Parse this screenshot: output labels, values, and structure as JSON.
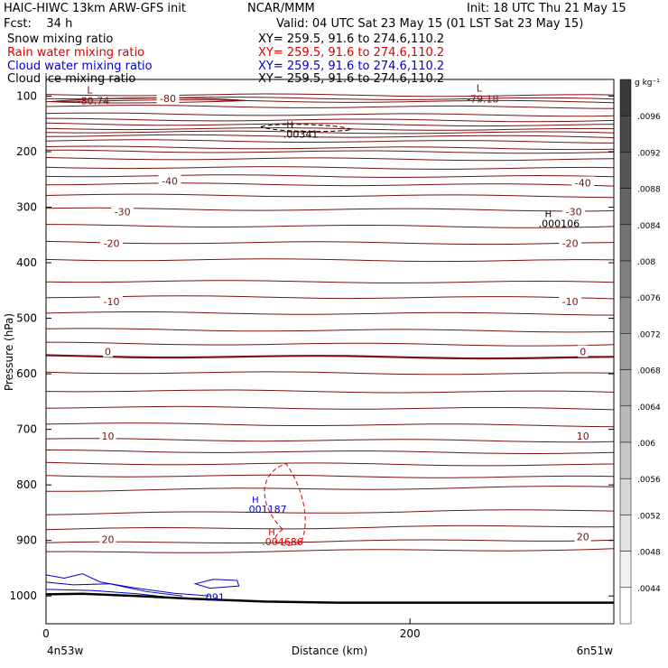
{
  "header": {
    "title_left": "HAIC-HIWC 13km ARW-GFS init",
    "center_org": "NCAR/MMM",
    "init": "Init: 18 UTC Thu 21 May 15",
    "fcst": "Fcst:    34 h",
    "valid": "Valid: 04 UTC Sat 23 May 15 (01 LST Sat 23 May 15)",
    "fields": [
      {
        "name": "Snow mixing ratio",
        "xy": "XY= 259.5, 91.6 to 274.6,110.2",
        "color": "#000000"
      },
      {
        "name": "Rain water mixing ratio",
        "xy": "XY= 259.5, 91.6 to 274.6,110.2",
        "color": "#e00000"
      },
      {
        "name": "Cloud water mixing ratio",
        "xy": "XY= 259.5, 91.6 to 274.6,110.2",
        "color": "#0000d0"
      },
      {
        "name": "Cloud ice mixing ratio",
        "xy": "XY= 259.5, 91.6 to 274.6,110.2",
        "color": "#000000"
      }
    ]
  },
  "chart_data": {
    "type": "cross-section",
    "ylabel": "Pressure (hPa)",
    "xlabel": "Distance (km)",
    "x_ticks": [
      0,
      200
    ],
    "y_ticks": [
      100,
      200,
      300,
      400,
      500,
      600,
      700,
      800,
      900,
      1000
    ],
    "xlim": [
      0,
      312
    ],
    "ylim": [
      1050,
      70
    ],
    "x_endpoints": {
      "left": "4n53w",
      "right": "6n51w"
    },
    "colorbar": {
      "unit": "g kg⁻¹",
      "ticks": [
        ".0096",
        ".0092",
        ".0088",
        ".0084",
        ".008",
        ".0076",
        ".0072",
        ".0068",
        ".0064",
        ".006",
        ".0056",
        ".0052",
        ".0048",
        ".0044"
      ],
      "top_color": "#3a3a3a",
      "bottom_color": "#ffffff"
    },
    "temperature_contours": {
      "color": "#7a1010",
      "zero_color": "#7a1010",
      "labels": [
        {
          "text": "-80",
          "x": 67,
          "p": 104
        },
        {
          "text": "-40",
          "x": 68,
          "p": 253
        },
        {
          "text": "-40",
          "x": 295,
          "p": 256
        },
        {
          "text": "-30",
          "x": 42,
          "p": 308
        },
        {
          "text": "-30",
          "x": 290,
          "p": 308
        },
        {
          "text": "-20",
          "x": 36,
          "p": 365
        },
        {
          "text": "-20",
          "x": 288,
          "p": 365
        },
        {
          "text": "-10",
          "x": 36,
          "p": 470
        },
        {
          "text": "-10",
          "x": 288,
          "p": 470
        },
        {
          "text": "0",
          "x": 34,
          "p": 560
        },
        {
          "text": "0",
          "x": 295,
          "p": 560
        },
        {
          "text": "10",
          "x": 34,
          "p": 712
        },
        {
          "text": "10",
          "x": 295,
          "p": 712
        },
        {
          "text": "20",
          "x": 34,
          "p": 898
        },
        {
          "text": "20",
          "x": 295,
          "p": 893
        }
      ],
      "extrema": [
        {
          "kind": "L",
          "value": "-80.74",
          "x": 24,
          "p": 95
        },
        {
          "kind": "L",
          "value": "-79.18",
          "x": 238,
          "p": 92
        }
      ]
    },
    "mixing_ratio_extrema": [
      {
        "kind": "H",
        "value": ".00341",
        "field": "Snow mixing ratio",
        "color": "#000000",
        "x": 134,
        "p": 157
      },
      {
        "kind": "H",
        "value": ".000106",
        "field": "Cloud ice mixing ratio",
        "color": "#000000",
        "x": 276,
        "p": 318
      },
      {
        "kind": "H",
        "value": ".001187",
        "field": "Cloud water mixing ratio",
        "color": "#0000d0",
        "x": 115,
        "p": 832
      },
      {
        "kind": "H",
        "value": ".004686",
        "field": "Rain water mixing ratio",
        "color": "#e00000",
        "x": 124,
        "p": 891
      },
      {
        "kind": "",
        "value": "091",
        "field": "Cloud water mixing ratio",
        "color": "#0000d0",
        "x": 87,
        "p": 1002
      }
    ]
  }
}
